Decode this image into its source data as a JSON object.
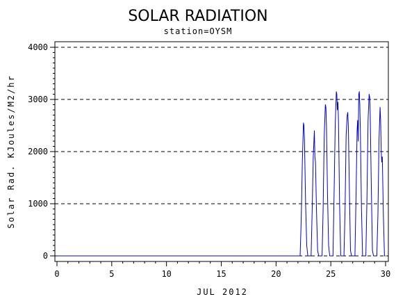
{
  "chart_data": {
    "type": "line",
    "title": "SOLAR RADIATION",
    "subtitle": "station=OYSM",
    "xlabel": "JUL 2012",
    "ylabel": "Solar Rad. KJoules/M2/hr",
    "xlim": [
      0,
      30
    ],
    "ylim": [
      0,
      4000
    ],
    "x_ticks": [
      0,
      5,
      10,
      15,
      20,
      25,
      30
    ],
    "y_ticks": [
      0,
      1000,
      2000,
      3000,
      4000
    ],
    "grid": "horizontal-dashed",
    "line_color": "#0000cc",
    "series": [
      {
        "x": [
          0,
          22.2,
          22.3,
          22.4,
          22.5,
          22.55,
          22.6,
          22.7,
          22.8,
          22.9,
          23.2,
          23.3,
          23.4,
          23.45,
          23.5,
          23.55,
          23.6,
          23.7,
          23.8,
          23.9,
          24.2,
          24.3,
          24.4,
          24.5,
          24.55,
          24.6,
          24.7,
          24.8,
          24.9,
          25.2,
          25.3,
          25.4,
          25.5,
          25.55,
          25.6,
          25.65,
          25.7,
          25.8,
          25.9,
          26.2,
          26.3,
          26.4,
          26.5,
          26.55,
          26.6,
          26.7,
          26.8,
          26.9,
          27.2,
          27.3,
          27.4,
          27.45,
          27.5,
          27.55,
          27.6,
          27.65,
          27.7,
          27.8,
          27.9,
          28.2,
          28.3,
          28.4,
          28.5,
          28.55,
          28.6,
          28.7,
          28.8,
          28.9,
          29.2,
          29.3,
          29.4,
          29.5,
          29.55,
          29.6,
          29.65,
          29.7,
          29.8,
          29.9,
          30
        ],
        "y": [
          0,
          0,
          700,
          1800,
          2550,
          2500,
          2200,
          1000,
          200,
          0,
          0,
          900,
          1900,
          2150,
          2400,
          1900,
          1800,
          800,
          100,
          0,
          0,
          900,
          2300,
          2900,
          2850,
          2500,
          1200,
          200,
          0,
          0,
          1200,
          2500,
          3150,
          3100,
          2800,
          2950,
          2600,
          1000,
          0,
          0,
          900,
          2300,
          2700,
          2750,
          2500,
          1200,
          100,
          0,
          0,
          1100,
          2400,
          2600,
          2200,
          3100,
          3150,
          2900,
          2400,
          900,
          0,
          0,
          1100,
          2600,
          3100,
          3050,
          2700,
          1300,
          100,
          0,
          0,
          800,
          2200,
          2850,
          2600,
          2000,
          1800,
          1900,
          800,
          0,
          0
        ]
      }
    ]
  }
}
